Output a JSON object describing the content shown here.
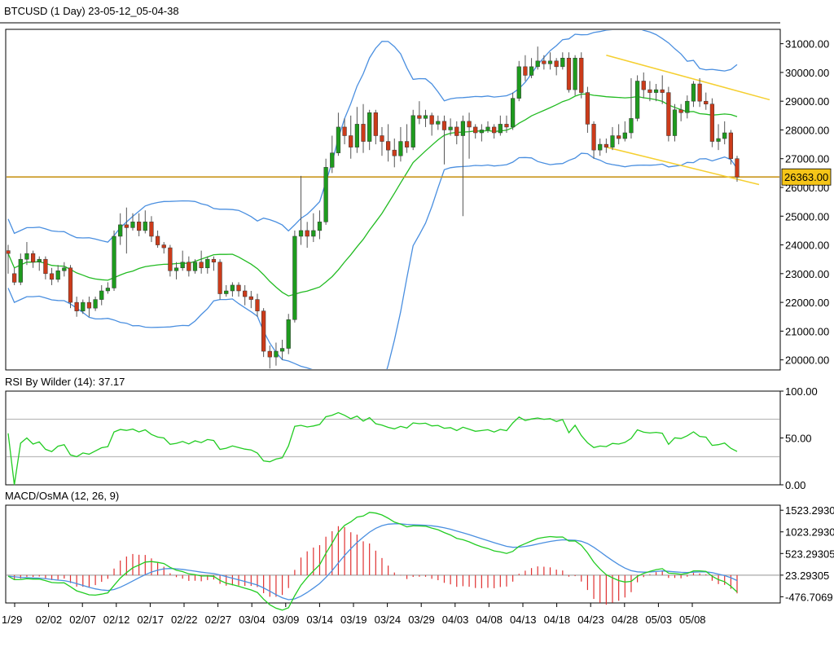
{
  "header": {
    "title": "BTCUSD (1 Day) 23-05-12_05-04-38"
  },
  "colors": {
    "bull": "#1e9b1e",
    "bear": "#cc3b1a",
    "band": "#4a8fe0",
    "mid": "#22bb22",
    "channel": "#f5cf30",
    "support": "#c9961e",
    "price_tag": "#f5c518",
    "rsi": "#22cc22",
    "macd": "#22cc22",
    "signal": "#4a8fe0",
    "osma": "#e03030"
  },
  "chart_data": [
    {
      "name": "price",
      "type": "candlestick",
      "y_ticks": [
        "31000.00",
        "30000.00",
        "29000.00",
        "28000.00",
        "27000.00",
        "26000.00",
        "25000.00",
        "24000.00",
        "23000.00",
        "22000.00",
        "21000.00",
        "20000.00"
      ],
      "ylim": [
        19650,
        31500
      ],
      "x_ticks": [
        "1/29",
        "02/02",
        "02/07",
        "02/12",
        "02/17",
        "02/22",
        "02/27",
        "03/04",
        "03/09",
        "03/14",
        "03/19",
        "03/24",
        "03/29",
        "04/03",
        "04/08",
        "04/13",
        "04/18",
        "04/23",
        "04/28",
        "05/03",
        "05/08"
      ],
      "last_price_label": "26363.00",
      "support_level": 26363,
      "candles": [
        [
          23800,
          23700,
          24000,
          23000
        ],
        [
          23000,
          22700,
          23200,
          22600
        ],
        [
          22700,
          23500,
          23700,
          22600
        ],
        [
          23500,
          23700,
          24100,
          23300
        ],
        [
          23700,
          23400,
          23800,
          23200
        ],
        [
          23400,
          23500,
          23600,
          23100
        ],
        [
          23500,
          23000,
          23600,
          22800
        ],
        [
          23000,
          22800,
          23200,
          22600
        ],
        [
          22800,
          23100,
          23300,
          22700
        ],
        [
          23100,
          23200,
          23400,
          22900
        ],
        [
          23200,
          22000,
          23300,
          21800
        ],
        [
          22000,
          21700,
          22200,
          21500
        ],
        [
          21700,
          22000,
          22100,
          21600
        ],
        [
          22000,
          21800,
          22200,
          21500
        ],
        [
          21800,
          22100,
          22200,
          21700
        ],
        [
          22100,
          22400,
          22600,
          21900
        ],
        [
          22400,
          22500,
          22700,
          22300
        ],
        [
          22500,
          24300,
          24500,
          22400
        ],
        [
          24300,
          24700,
          25100,
          24000
        ],
        [
          24700,
          24600,
          25300,
          23700
        ],
        [
          24600,
          24800,
          25100,
          24500
        ],
        [
          24800,
          24500,
          25100,
          24300
        ],
        [
          24500,
          24800,
          25200,
          24400
        ],
        [
          24800,
          24300,
          25000,
          24100
        ],
        [
          24300,
          24000,
          24500,
          23900
        ],
        [
          24000,
          23900,
          24100,
          23700
        ],
        [
          23900,
          23100,
          24000,
          22900
        ],
        [
          23100,
          23200,
          23400,
          22800
        ],
        [
          23200,
          23400,
          23800,
          23100
        ],
        [
          23400,
          23100,
          23600,
          22900
        ],
        [
          23100,
          23400,
          23500,
          23000
        ],
        [
          23400,
          23200,
          23800,
          23000
        ],
        [
          23200,
          23500,
          23600,
          23000
        ],
        [
          23500,
          23400,
          23600,
          23100
        ],
        [
          23400,
          22300,
          23500,
          22100
        ],
        [
          22300,
          22400,
          22600,
          22200
        ],
        [
          22400,
          22600,
          22700,
          22200
        ],
        [
          22600,
          22400,
          22700,
          22200
        ],
        [
          22400,
          22200,
          22600,
          21900
        ],
        [
          22200,
          22100,
          22400,
          21800
        ],
        [
          22100,
          21700,
          22300,
          21500
        ],
        [
          21700,
          20300,
          21800,
          20100
        ],
        [
          20300,
          20100,
          20500,
          19700
        ],
        [
          20100,
          20300,
          20600,
          19800
        ],
        [
          20300,
          20400,
          20700,
          20000
        ],
        [
          20400,
          21400,
          21600,
          20200
        ],
        [
          21400,
          24300,
          24500,
          21300
        ],
        [
          24300,
          24500,
          26400,
          24000
        ],
        [
          24500,
          24300,
          24800,
          23900
        ],
        [
          24300,
          24500,
          25100,
          24100
        ],
        [
          24500,
          24800,
          25200,
          24200
        ],
        [
          24800,
          26700,
          27000,
          24700
        ],
        [
          26700,
          27200,
          27800,
          26500
        ],
        [
          27200,
          28100,
          28600,
          27100
        ],
        [
          28100,
          27800,
          28400,
          27500
        ],
        [
          27800,
          27400,
          28500,
          27000
        ],
        [
          27400,
          28200,
          28800,
          27200
        ],
        [
          28200,
          27600,
          28900,
          27200
        ],
        [
          27600,
          28600,
          28700,
          27300
        ],
        [
          28600,
          27800,
          28700,
          27500
        ],
        [
          27800,
          27600,
          28100,
          27100
        ],
        [
          27600,
          27300,
          28200,
          26900
        ],
        [
          27300,
          27100,
          27700,
          26700
        ],
        [
          27100,
          27600,
          28100,
          26900
        ],
        [
          27600,
          27400,
          28200,
          27200
        ],
        [
          27400,
          28500,
          28700,
          27300
        ],
        [
          28500,
          28400,
          29000,
          28200
        ],
        [
          28400,
          28500,
          28700,
          28100
        ],
        [
          28500,
          28200,
          28600,
          27800
        ],
        [
          28200,
          28300,
          28500,
          28000
        ],
        [
          28300,
          28000,
          28500,
          26800
        ],
        [
          28000,
          28100,
          28400,
          27800
        ],
        [
          28100,
          27800,
          28300,
          27500
        ],
        [
          27800,
          28300,
          28500,
          25000
        ],
        [
          28300,
          28100,
          28600,
          27000
        ],
        [
          28100,
          27900,
          28200,
          27700
        ],
        [
          27900,
          28000,
          28200,
          27600
        ],
        [
          28000,
          28100,
          28300,
          27900
        ],
        [
          28100,
          27900,
          28200,
          27700
        ],
        [
          27900,
          28200,
          28500,
          27800
        ],
        [
          28200,
          28100,
          28500,
          27900
        ],
        [
          28100,
          29100,
          29300,
          28000
        ],
        [
          29100,
          30200,
          30400,
          29000
        ],
        [
          30200,
          29900,
          30600,
          29700
        ],
        [
          29900,
          30200,
          30500,
          29800
        ],
        [
          30200,
          30400,
          30900,
          30100
        ],
        [
          30400,
          30300,
          30600,
          30100
        ],
        [
          30300,
          30400,
          30700,
          30100
        ],
        [
          30400,
          30200,
          30500,
          29900
        ],
        [
          30200,
          30500,
          30700,
          30100
        ],
        [
          30500,
          29400,
          30700,
          29300
        ],
        [
          29400,
          30500,
          30600,
          29200
        ],
        [
          30500,
          29300,
          30700,
          29100
        ],
        [
          29300,
          28200,
          29500,
          27900
        ],
        [
          28200,
          27300,
          28300,
          27000
        ],
        [
          27300,
          27500,
          27700,
          27100
        ],
        [
          27500,
          27400,
          27700,
          27200
        ],
        [
          27400,
          27800,
          28100,
          27300
        ],
        [
          27800,
          27700,
          28200,
          27500
        ],
        [
          27700,
          27900,
          28300,
          27600
        ],
        [
          27900,
          28400,
          29800,
          27700
        ],
        [
          28400,
          29700,
          29900,
          28300
        ],
        [
          29700,
          29400,
          30000,
          29100
        ],
        [
          29400,
          29300,
          29700,
          29000
        ],
        [
          29300,
          29400,
          29600,
          29000
        ],
        [
          29400,
          29300,
          29900,
          28900
        ],
        [
          29300,
          27800,
          29500,
          27600
        ],
        [
          27800,
          28700,
          28900,
          27600
        ],
        [
          28700,
          28600,
          28900,
          28300
        ],
        [
          28600,
          29000,
          29200,
          28400
        ],
        [
          29000,
          29600,
          29700,
          28800
        ],
        [
          29600,
          29000,
          29800,
          28800
        ],
        [
          29000,
          28900,
          29300,
          28700
        ],
        [
          28900,
          27600,
          29100,
          27400
        ],
        [
          27600,
          27700,
          28200,
          27300
        ],
        [
          27700,
          27900,
          28300,
          27500
        ],
        [
          27900,
          27000,
          28000,
          26800
        ],
        [
          27000,
          26363,
          27100,
          26200
        ]
      ]
    },
    {
      "name": "rsi",
      "type": "line",
      "title": "RSI By Wilder (14): 37.17",
      "y_ticks": [
        "100.00",
        "50.00",
        "0.00"
      ],
      "ylim": [
        0,
        100
      ],
      "levels": [
        70,
        30
      ]
    },
    {
      "name": "macd",
      "type": "line+histogram",
      "title": "MACD/OsMA (12, 26, 9)",
      "y_ticks": [
        "1523.2930",
        "1023.2930",
        "523.29305",
        "23.29305",
        "-476.7069"
      ],
      "ylim": [
        -620,
        1640
      ],
      "zero_line": 23.29305
    }
  ]
}
